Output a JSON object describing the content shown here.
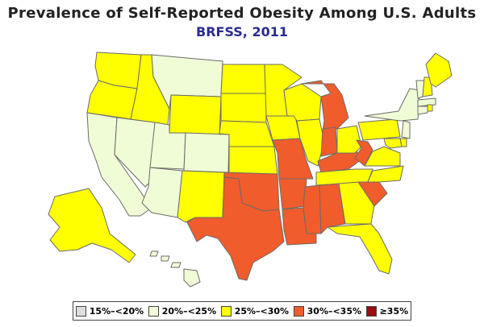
{
  "title": "Prevalence of Self-Reported Obesity Among U.S. Adults",
  "subtitle": "BRFSS, 2011",
  "legend": [
    {
      "label": "15%–<20%",
      "color": "#dddddd"
    },
    {
      "label": "20%–<25%",
      "color": "#f0fcd6"
    },
    {
      "label": "25%–<30%",
      "color": "#ffff00"
    },
    {
      "label": "30%–<35%",
      "color": "#f05c2b"
    },
    {
      "label": "≥35%",
      "color": "#9c0c12"
    }
  ],
  "state_categories": {
    "WA": 2,
    "OR": 2,
    "CA": 1,
    "NV": 1,
    "ID": 2,
    "MT": 1,
    "WY": 2,
    "UT": 1,
    "CO": 1,
    "AZ": 1,
    "NM": 2,
    "ND": 2,
    "SD": 2,
    "NE": 2,
    "KS": 2,
    "OK": 3,
    "TX": 3,
    "MN": 2,
    "IA": 2,
    "MO": 3,
    "AR": 3,
    "LA": 3,
    "WI": 2,
    "IL": 2,
    "MS": 3,
    "MI": 3,
    "IN": 3,
    "KY": 3,
    "TN": 2,
    "AL": 3,
    "OH": 2,
    "WV": 3,
    "GA": 2,
    "FL": 2,
    "SC": 3,
    "NC": 2,
    "VA": 2,
    "PA": 2,
    "NY": 1,
    "VT": 1,
    "NH": 2,
    "ME": 2,
    "MA": 1,
    "CT": 1,
    "RI": 2,
    "NJ": 1,
    "DE": 2,
    "MD": 2,
    "AK": 2,
    "HI": 1
  }
}
